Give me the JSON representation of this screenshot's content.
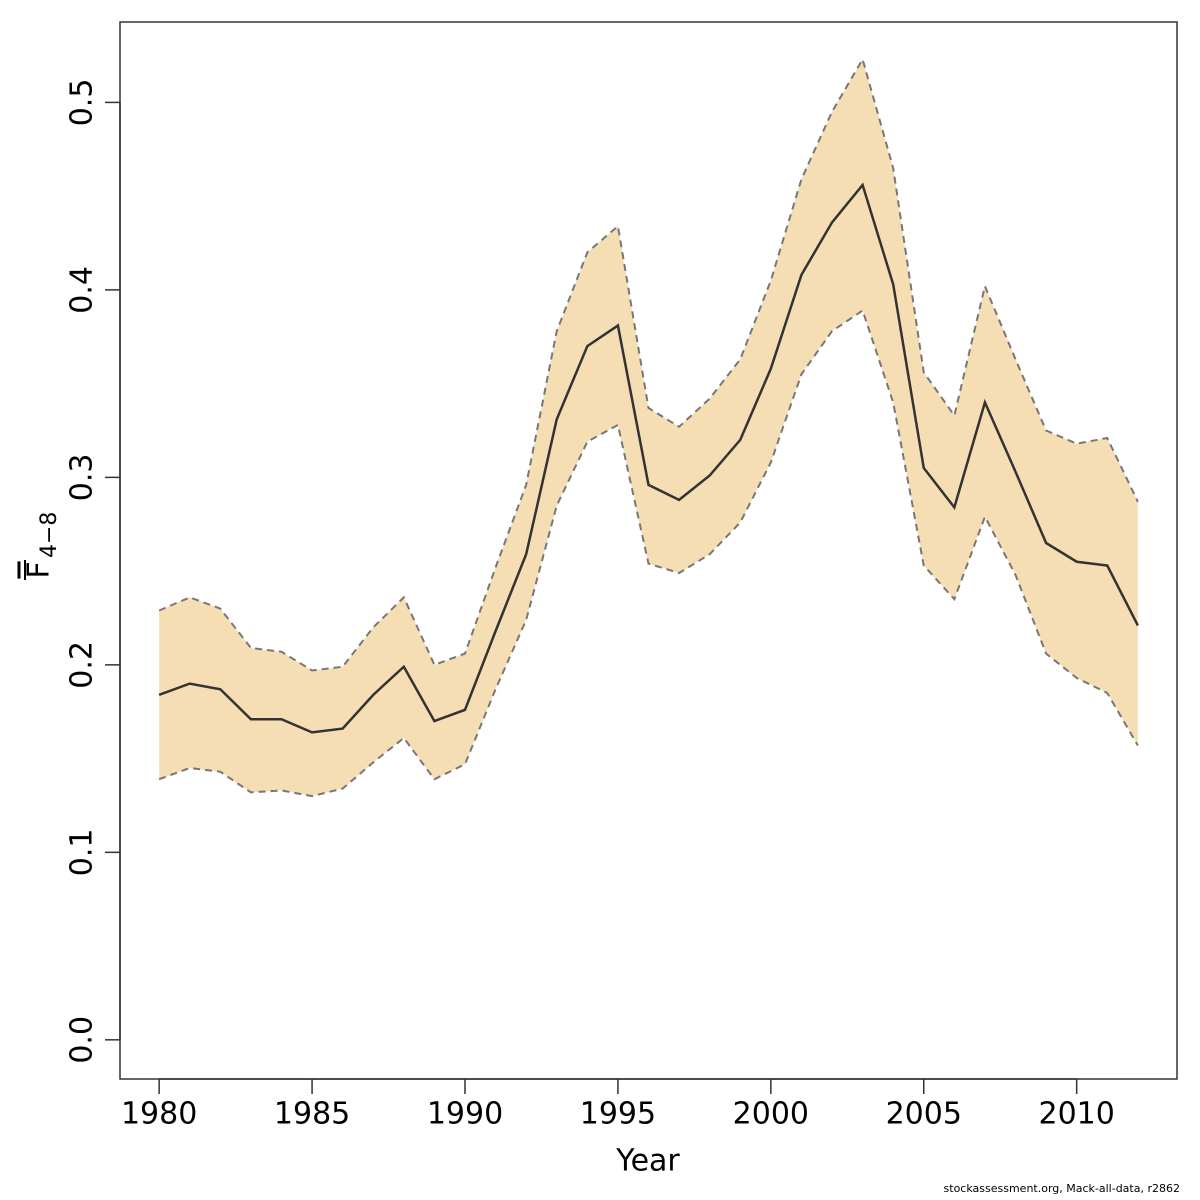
{
  "chart_data": {
    "type": "line",
    "x_label": "Year",
    "y_label": "F",
    "y_label_subscript": "4−8",
    "footer": "stockassessment.org, Mack-all-data, r2862",
    "x": [
      1980,
      1981,
      1982,
      1983,
      1984,
      1985,
      1986,
      1987,
      1988,
      1989,
      1990,
      1991,
      1992,
      1993,
      1994,
      1995,
      1996,
      1997,
      1998,
      1999,
      2000,
      2001,
      2002,
      2003,
      2004,
      2005,
      2006,
      2007,
      2008,
      2009,
      2010,
      2011,
      2012
    ],
    "values": [
      0.184,
      0.19,
      0.187,
      0.171,
      0.171,
      0.164,
      0.166,
      0.184,
      0.199,
      0.17,
      0.176,
      0.218,
      0.259,
      0.331,
      0.37,
      0.381,
      0.296,
      0.288,
      0.301,
      0.32,
      0.358,
      0.408,
      0.436,
      0.456,
      0.403,
      0.305,
      0.284,
      0.34,
      0.303,
      0.265,
      0.255,
      0.253,
      0.221
    ],
    "upper": [
      0.229,
      0.236,
      0.23,
      0.209,
      0.207,
      0.197,
      0.199,
      0.22,
      0.236,
      0.2,
      0.206,
      0.252,
      0.296,
      0.378,
      0.42,
      0.434,
      0.337,
      0.327,
      0.342,
      0.363,
      0.405,
      0.459,
      0.495,
      0.523,
      0.465,
      0.356,
      0.333,
      0.402,
      0.363,
      0.325,
      0.318,
      0.321,
      0.287
    ],
    "lower": [
      0.139,
      0.145,
      0.143,
      0.132,
      0.133,
      0.13,
      0.134,
      0.148,
      0.161,
      0.139,
      0.147,
      0.187,
      0.224,
      0.285,
      0.319,
      0.328,
      0.254,
      0.249,
      0.259,
      0.276,
      0.308,
      0.355,
      0.378,
      0.389,
      0.34,
      0.253,
      0.235,
      0.279,
      0.248,
      0.206,
      0.193,
      0.185,
      0.157
    ],
    "color": "#333333",
    "band_color": "#f5deb3",
    "bound_color": "#777777",
    "xlim": [
      1978.72,
      2013.28
    ],
    "ylim": [
      -0.0209,
      0.5429
    ],
    "xticks": [
      1980,
      1985,
      1990,
      1995,
      2000,
      2005,
      2010
    ],
    "yticks": [
      {
        "value": 0,
        "label": "0.0"
      },
      0.1,
      0.2,
      0.3,
      0.4,
      0.5
    ]
  }
}
